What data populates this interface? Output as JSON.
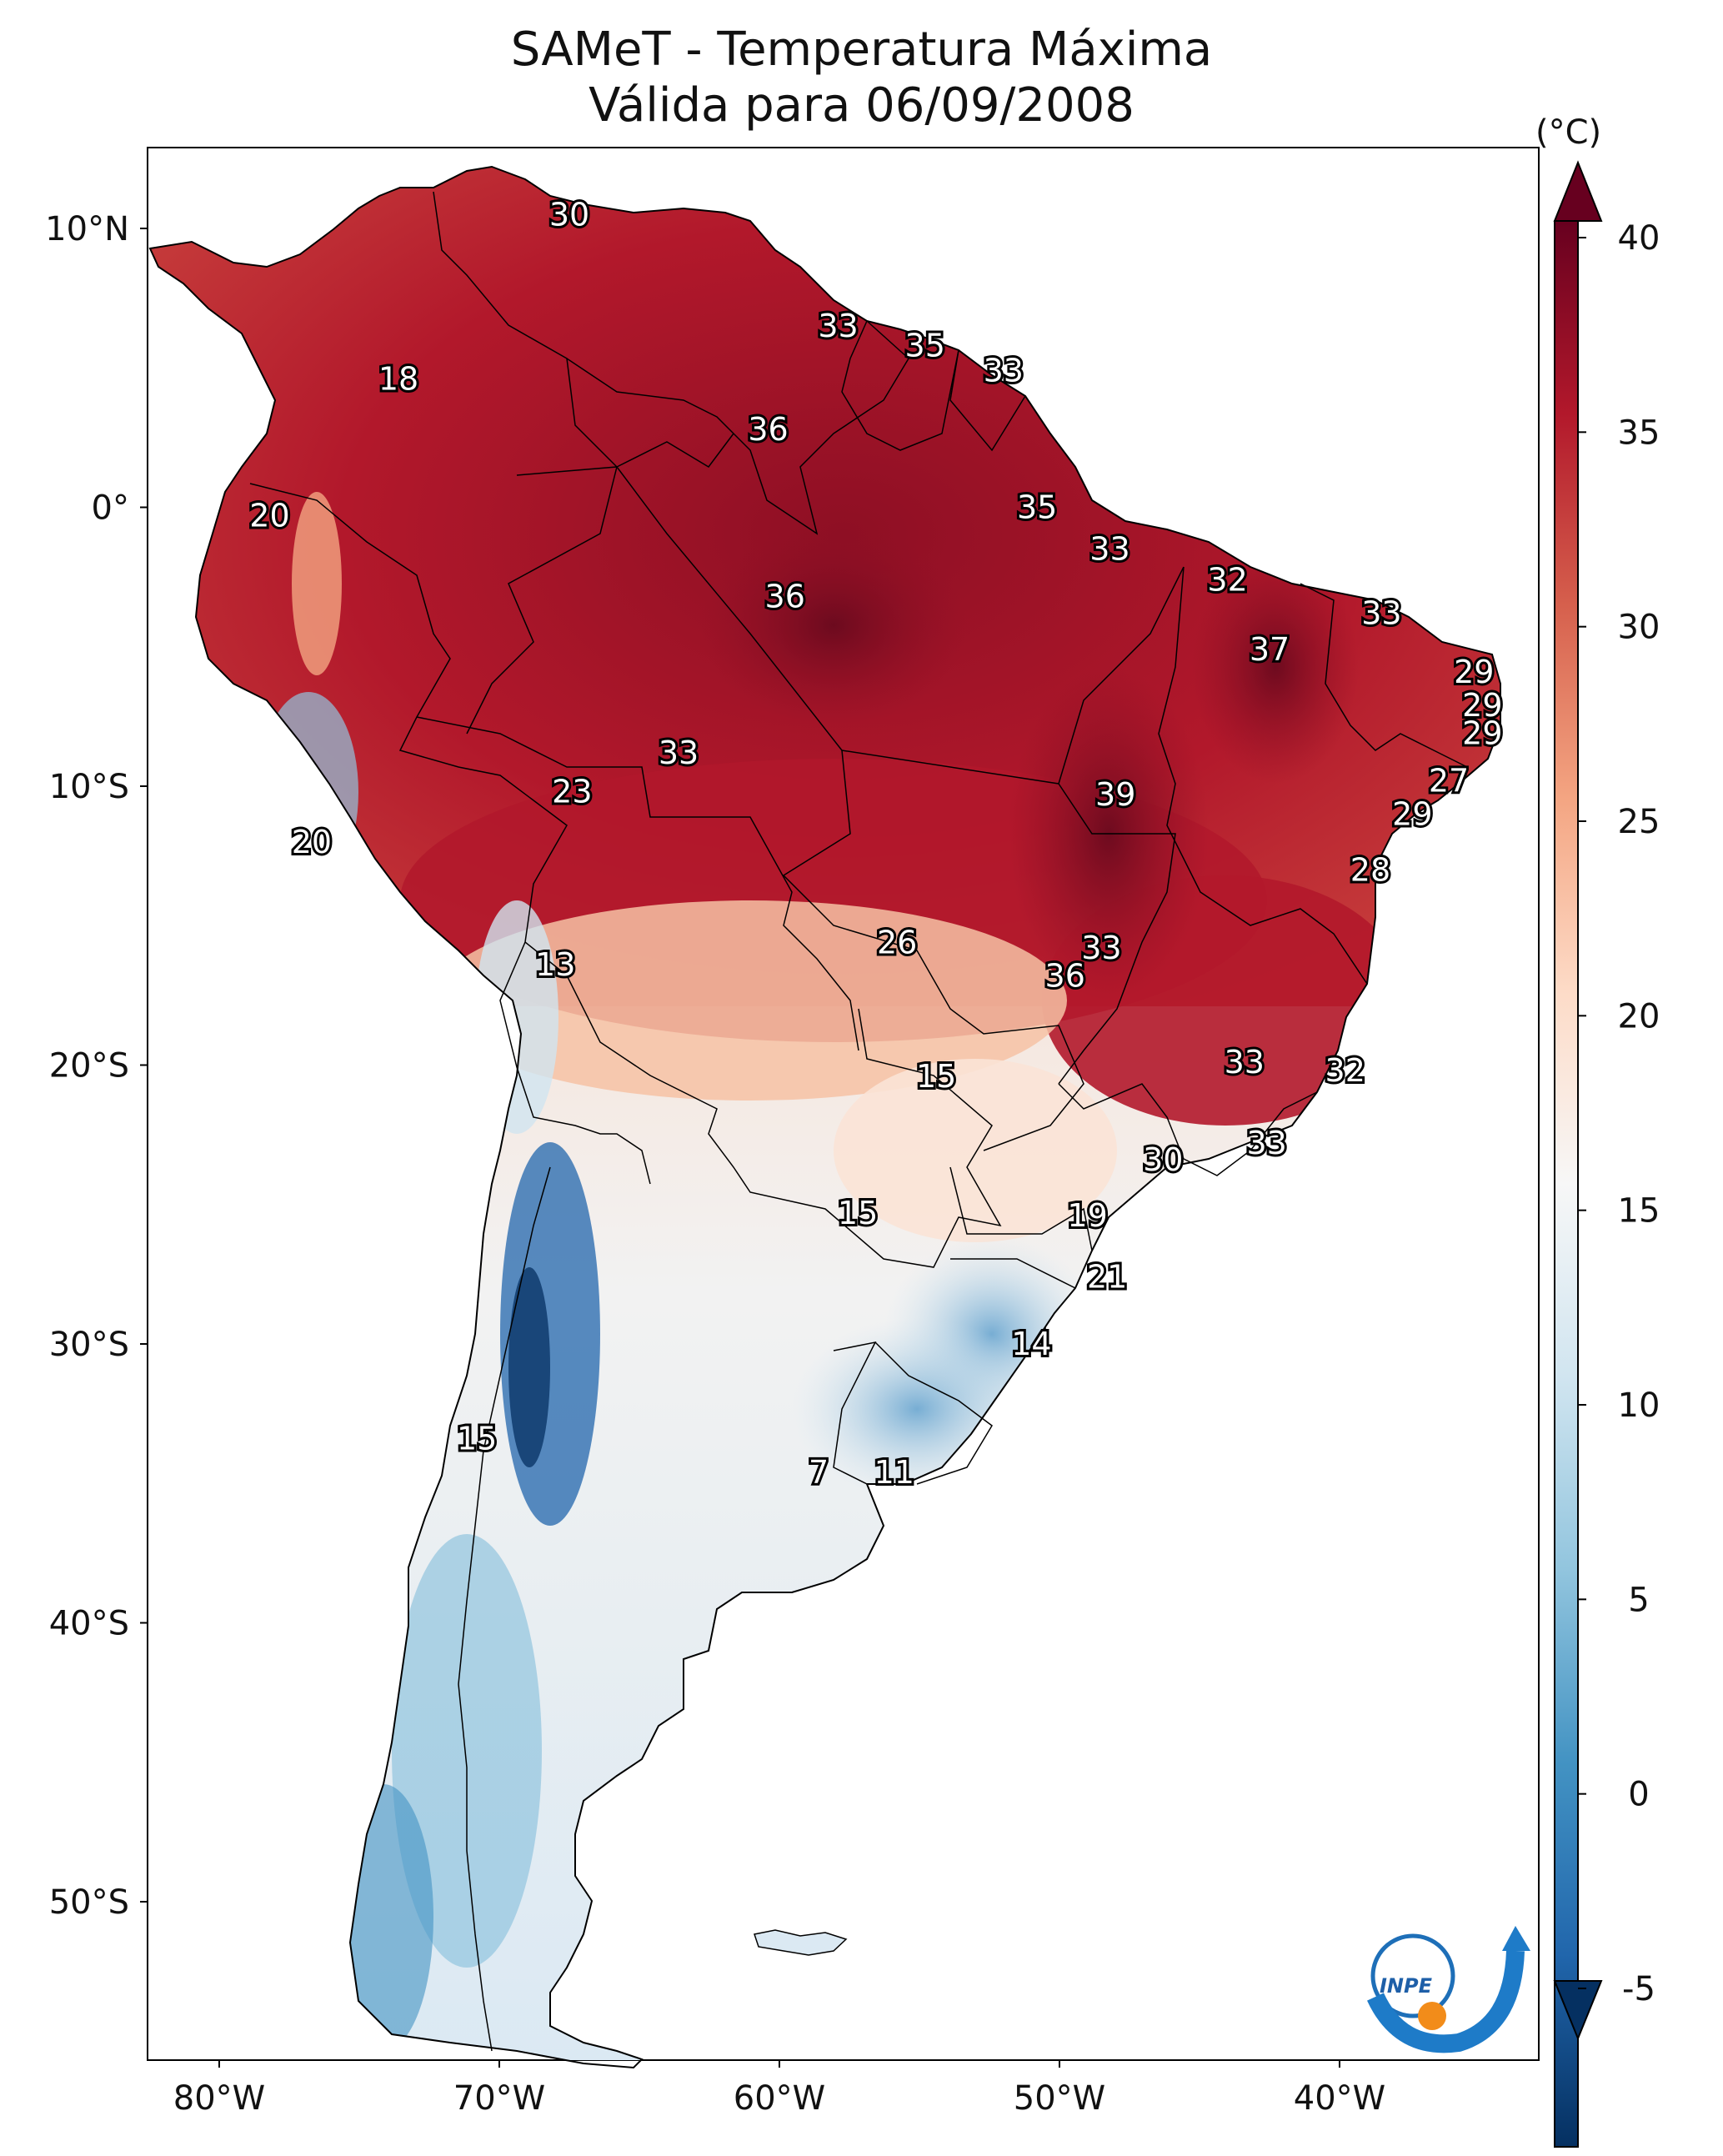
{
  "title": {
    "line1": "SAMeT - Temperatura Máxima",
    "line2": "Válida para 06/09/2008"
  },
  "axes": {
    "lat_ticks": [
      {
        "label": "10°N",
        "lat": 10
      },
      {
        "label": "0°",
        "lat": 0
      },
      {
        "label": "10°S",
        "lat": -10
      },
      {
        "label": "20°S",
        "lat": -20
      },
      {
        "label": "30°S",
        "lat": -30
      },
      {
        "label": "40°S",
        "lat": -40
      },
      {
        "label": "50°S",
        "lat": -50
      }
    ],
    "lon_ticks": [
      {
        "label": "80°W",
        "lon": -80
      },
      {
        "label": "70°W",
        "lon": -70
      },
      {
        "label": "60°W",
        "lon": -60
      },
      {
        "label": "50°W",
        "lon": -50
      },
      {
        "label": "40°W",
        "lon": -40
      }
    ],
    "lon_range": [
      -83,
      -33
    ],
    "lat_range": [
      -56,
      13
    ]
  },
  "colorbar": {
    "unit": "(°C)",
    "min": -5,
    "max": 40,
    "ticks": [
      "40",
      "35",
      "30",
      "25",
      "20",
      "15",
      "10",
      "5",
      "0",
      "-5"
    ],
    "colors": [
      "#053061",
      "#2166ac",
      "#4393c3",
      "#92c5de",
      "#d1e5f0",
      "#f7f7f7",
      "#fddbc7",
      "#f4a582",
      "#d6604d",
      "#b2182b",
      "#67001f"
    ]
  },
  "station_labels": [
    {
      "text": "30",
      "lon": -67.5,
      "lat": 10.5
    },
    {
      "text": "33",
      "lon": -57.9,
      "lat": 6.5
    },
    {
      "text": "35",
      "lon": -54.8,
      "lat": 5.8
    },
    {
      "text": "33",
      "lon": -52.0,
      "lat": 4.9
    },
    {
      "text": "18",
      "lon": -73.6,
      "lat": 4.6
    },
    {
      "text": "36",
      "lon": -60.4,
      "lat": 2.8
    },
    {
      "text": "20",
      "lon": -78.2,
      "lat": -0.3
    },
    {
      "text": "35",
      "lon": -50.8,
      "lat": 0.0
    },
    {
      "text": "33",
      "lon": -48.2,
      "lat": -1.5
    },
    {
      "text": "32",
      "lon": -44.0,
      "lat": -2.6
    },
    {
      "text": "36",
      "lon": -59.8,
      "lat": -3.2
    },
    {
      "text": "33",
      "lon": -38.5,
      "lat": -3.8
    },
    {
      "text": "37",
      "lon": -42.5,
      "lat": -5.1
    },
    {
      "text": "29",
      "lon": -35.2,
      "lat": -5.9
    },
    {
      "text": "29",
      "lon": -34.9,
      "lat": -7.1
    },
    {
      "text": "29",
      "lon": -34.9,
      "lat": -8.1
    },
    {
      "text": "33",
      "lon": -63.6,
      "lat": -8.8
    },
    {
      "text": "27",
      "lon": -36.1,
      "lat": -9.8
    },
    {
      "text": "23",
      "lon": -67.4,
      "lat": -10.2
    },
    {
      "text": "39",
      "lon": -48.0,
      "lat": -10.3
    },
    {
      "text": "29",
      "lon": -37.4,
      "lat": -11.0
    },
    {
      "text": "20",
      "lon": -76.7,
      "lat": -12.0
    },
    {
      "text": "28",
      "lon": -38.9,
      "lat": -13.0
    },
    {
      "text": "26",
      "lon": -55.8,
      "lat": -15.6
    },
    {
      "text": "33",
      "lon": -48.5,
      "lat": -15.8
    },
    {
      "text": "36",
      "lon": -49.8,
      "lat": -16.8
    },
    {
      "text": "13",
      "lon": -68.0,
      "lat": -16.4
    },
    {
      "text": "33",
      "lon": -43.4,
      "lat": -19.9
    },
    {
      "text": "15",
      "lon": -54.4,
      "lat": -20.4
    },
    {
      "text": "32",
      "lon": -39.8,
      "lat": -20.2
    },
    {
      "text": "33",
      "lon": -42.6,
      "lat": -22.8
    },
    {
      "text": "30",
      "lon": -46.3,
      "lat": -23.4
    },
    {
      "text": "15",
      "lon": -57.2,
      "lat": -25.3
    },
    {
      "text": "19",
      "lon": -49.0,
      "lat": -25.4
    },
    {
      "text": "21",
      "lon": -48.3,
      "lat": -27.6
    },
    {
      "text": "14",
      "lon": -51.0,
      "lat": -30.0
    },
    {
      "text": "15",
      "lon": -70.8,
      "lat": -33.4
    },
    {
      "text": "7",
      "lon": -58.6,
      "lat": -34.6
    },
    {
      "text": "11",
      "lon": -55.9,
      "lat": -34.6
    }
  ],
  "logo": {
    "text": "INPE"
  }
}
